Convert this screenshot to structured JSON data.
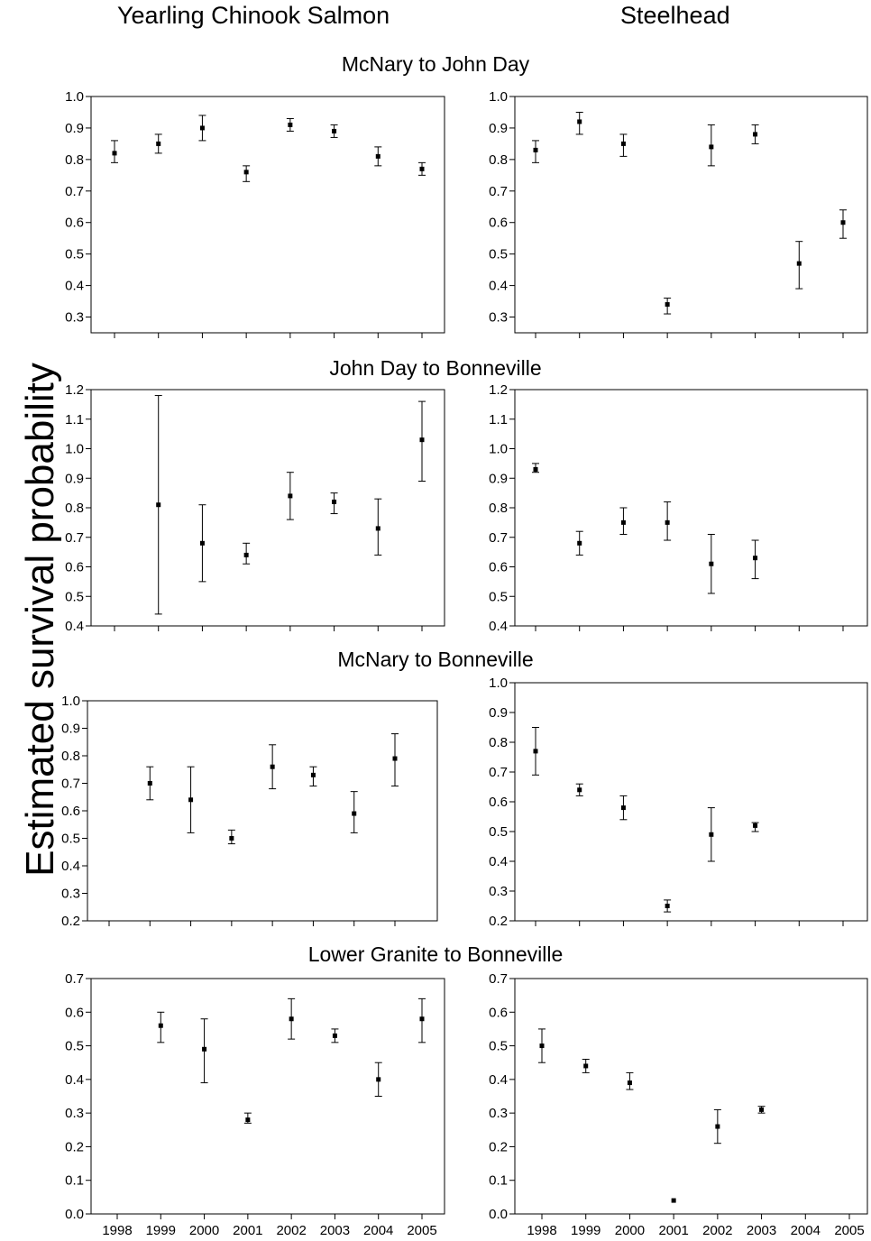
{
  "figure": {
    "col_titles": [
      "Yearling Chinook Salmon",
      "Steelhead"
    ],
    "row_titles": [
      "McNary to John Day",
      "John Day to Bonneville",
      "McNary to Bonneville",
      "Lower Granite to Bonneville"
    ],
    "ylabel": "Estimated survival probability",
    "x_tick_labels": [
      "1998",
      "1999",
      "2000",
      "2001",
      "2002",
      "2003",
      "2004",
      "2005"
    ]
  },
  "chart_data": [
    {
      "type": "scatter",
      "row": "McNary to John Day",
      "col": "Yearling Chinook Salmon",
      "x": [
        "1998",
        "1999",
        "2000",
        "2001",
        "2002",
        "2003",
        "2004",
        "2005"
      ],
      "y": [
        0.82,
        0.85,
        0.9,
        0.76,
        0.91,
        0.89,
        0.81,
        0.77
      ],
      "lower": [
        0.79,
        0.82,
        0.86,
        0.73,
        0.89,
        0.87,
        0.78,
        0.75
      ],
      "upper": [
        0.86,
        0.88,
        0.94,
        0.78,
        0.93,
        0.91,
        0.84,
        0.79
      ],
      "ylim": [
        0.25,
        1.0
      ],
      "yticks": [
        0.3,
        0.4,
        0.5,
        0.6,
        0.7,
        0.8,
        0.9,
        1.0
      ]
    },
    {
      "type": "scatter",
      "row": "McNary to John Day",
      "col": "Steelhead",
      "x": [
        "1998",
        "1999",
        "2000",
        "2001",
        "2002",
        "2003",
        "2004",
        "2005"
      ],
      "y": [
        0.83,
        0.92,
        0.85,
        0.34,
        0.84,
        0.88,
        0.47,
        0.6
      ],
      "lower": [
        0.79,
        0.88,
        0.81,
        0.31,
        0.78,
        0.85,
        0.39,
        0.55
      ],
      "upper": [
        0.86,
        0.95,
        0.88,
        0.36,
        0.91,
        0.91,
        0.54,
        0.64
      ],
      "ylim": [
        0.25,
        1.0
      ],
      "yticks": [
        0.3,
        0.4,
        0.5,
        0.6,
        0.7,
        0.8,
        0.9,
        1.0
      ]
    },
    {
      "type": "scatter",
      "row": "John Day to Bonneville",
      "col": "Yearling Chinook Salmon",
      "x": [
        "1999",
        "2000",
        "2001",
        "2002",
        "2003",
        "2004",
        "2005"
      ],
      "y": [
        0.81,
        0.68,
        0.64,
        0.84,
        0.82,
        0.73,
        1.03
      ],
      "lower": [
        0.44,
        0.55,
        0.61,
        0.76,
        0.78,
        0.64,
        0.89
      ],
      "upper": [
        1.18,
        0.81,
        0.68,
        0.92,
        0.85,
        0.83,
        1.16
      ],
      "ylim": [
        0.4,
        1.2
      ],
      "yticks": [
        0.4,
        0.5,
        0.6,
        0.7,
        0.8,
        0.9,
        1.0,
        1.1,
        1.2
      ]
    },
    {
      "type": "scatter",
      "row": "John Day to Bonneville",
      "col": "Steelhead",
      "x": [
        "1998",
        "1999",
        "2000",
        "2001",
        "2002",
        "2003"
      ],
      "y": [
        0.93,
        0.68,
        0.75,
        0.75,
        0.61,
        0.63
      ],
      "lower": [
        0.92,
        0.64,
        0.71,
        0.69,
        0.51,
        0.56
      ],
      "upper": [
        0.95,
        0.72,
        0.8,
        0.82,
        0.71,
        0.69
      ],
      "ylim": [
        0.4,
        1.2
      ],
      "yticks": [
        0.4,
        0.5,
        0.6,
        0.7,
        0.8,
        0.9,
        1.0,
        1.1,
        1.2
      ]
    },
    {
      "type": "scatter",
      "row": "McNary to Bonneville",
      "col": "Yearling Chinook Salmon",
      "x": [
        "1999",
        "2000",
        "2001",
        "2002",
        "2003",
        "2004",
        "2005"
      ],
      "y": [
        0.7,
        0.64,
        0.5,
        0.76,
        0.73,
        0.59,
        0.79
      ],
      "lower": [
        0.64,
        0.52,
        0.48,
        0.68,
        0.69,
        0.52,
        0.69
      ],
      "upper": [
        0.76,
        0.76,
        0.53,
        0.84,
        0.76,
        0.67,
        0.88
      ],
      "ylim": [
        0.2,
        1.0
      ],
      "yticks": [
        0.2,
        0.3,
        0.4,
        0.5,
        0.6,
        0.7,
        0.8,
        0.9,
        1.0
      ]
    },
    {
      "type": "scatter",
      "row": "McNary to Bonneville",
      "col": "Steelhead",
      "x": [
        "1998",
        "1999",
        "2000",
        "2001",
        "2002",
        "2003"
      ],
      "y": [
        0.77,
        0.64,
        0.58,
        0.25,
        0.49,
        0.52
      ],
      "lower": [
        0.69,
        0.62,
        0.54,
        0.23,
        0.4,
        0.5
      ],
      "upper": [
        0.85,
        0.66,
        0.62,
        0.27,
        0.58,
        0.53
      ],
      "ylim": [
        0.2,
        1.0
      ],
      "yticks": [
        0.2,
        0.3,
        0.4,
        0.5,
        0.6,
        0.7,
        0.8,
        0.9,
        1.0
      ]
    },
    {
      "type": "scatter",
      "row": "Lower Granite to Bonneville",
      "col": "Yearling Chinook Salmon",
      "x": [
        "1999",
        "2000",
        "2001",
        "2002",
        "2003",
        "2004",
        "2005"
      ],
      "y": [
        0.56,
        0.49,
        0.28,
        0.58,
        0.53,
        0.4,
        0.58
      ],
      "lower": [
        0.51,
        0.39,
        0.27,
        0.52,
        0.51,
        0.35,
        0.51
      ],
      "upper": [
        0.6,
        0.58,
        0.3,
        0.64,
        0.55,
        0.45,
        0.64
      ],
      "ylim": [
        0.0,
        0.7
      ],
      "yticks": [
        0.0,
        0.1,
        0.2,
        0.3,
        0.4,
        0.5,
        0.6,
        0.7
      ]
    },
    {
      "type": "scatter",
      "row": "Lower Granite to Bonneville",
      "col": "Steelhead",
      "x": [
        "1998",
        "1999",
        "2000",
        "2001",
        "2002",
        "2003"
      ],
      "y": [
        0.5,
        0.44,
        0.39,
        0.04,
        0.26,
        0.31
      ],
      "lower": [
        0.45,
        0.42,
        0.37,
        0.04,
        0.21,
        0.3
      ],
      "upper": [
        0.55,
        0.46,
        0.42,
        0.04,
        0.31,
        0.32
      ],
      "ylim": [
        0.0,
        0.7
      ],
      "yticks": [
        0.0,
        0.1,
        0.2,
        0.3,
        0.4,
        0.5,
        0.6,
        0.7
      ]
    }
  ]
}
